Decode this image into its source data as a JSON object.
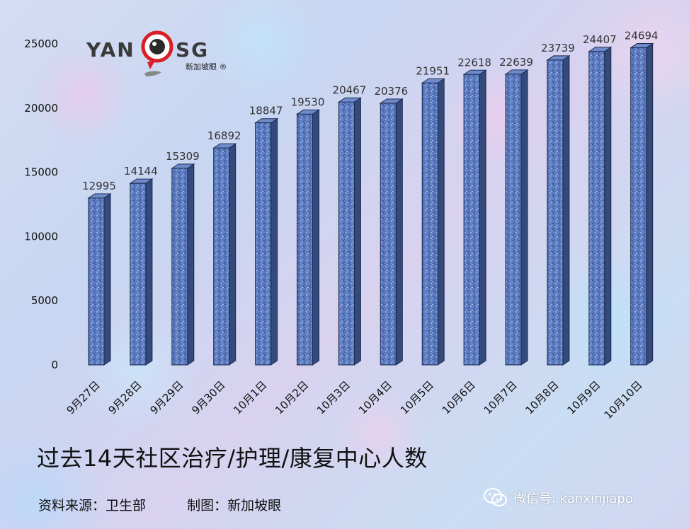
{
  "logo": {
    "left_text": "YAN",
    "right_text": "SG",
    "sub_text": "新加坡眼 ®"
  },
  "chart_data": {
    "type": "bar",
    "categories": [
      "9月27日",
      "9月28日",
      "9月29日",
      "9月30日",
      "10月1日",
      "10月2日",
      "10月3日",
      "10月4日",
      "10月5日",
      "10月6日",
      "10月7日",
      "10月8日",
      "10月9日",
      "10月10日"
    ],
    "values": [
      12995,
      14144,
      15309,
      16892,
      18847,
      19530,
      20467,
      20376,
      21951,
      22618,
      22639,
      23739,
      24407,
      24694
    ],
    "data_labels": [
      "12995",
      "14144",
      "15309",
      "16892",
      "18847",
      "19530",
      "20467",
      "20376",
      "21951",
      "22618",
      "22639",
      "23739",
      "24407",
      "24694"
    ],
    "yticks": [
      "0",
      "5000",
      "10000",
      "15000",
      "20000",
      "25000"
    ],
    "ylim": [
      0,
      25000
    ],
    "bar_color": "#5b7bbf",
    "style": "3d-column",
    "grid": false,
    "legend": "none"
  },
  "caption": {
    "title": "过去14天社区治疗/护理/康复中心人数",
    "source": "资料来源：卫生部",
    "maker": "制图：新加坡眼"
  },
  "watermark": {
    "text": "微信号: kanxinjiapo",
    "icon": "wechat-icon"
  }
}
